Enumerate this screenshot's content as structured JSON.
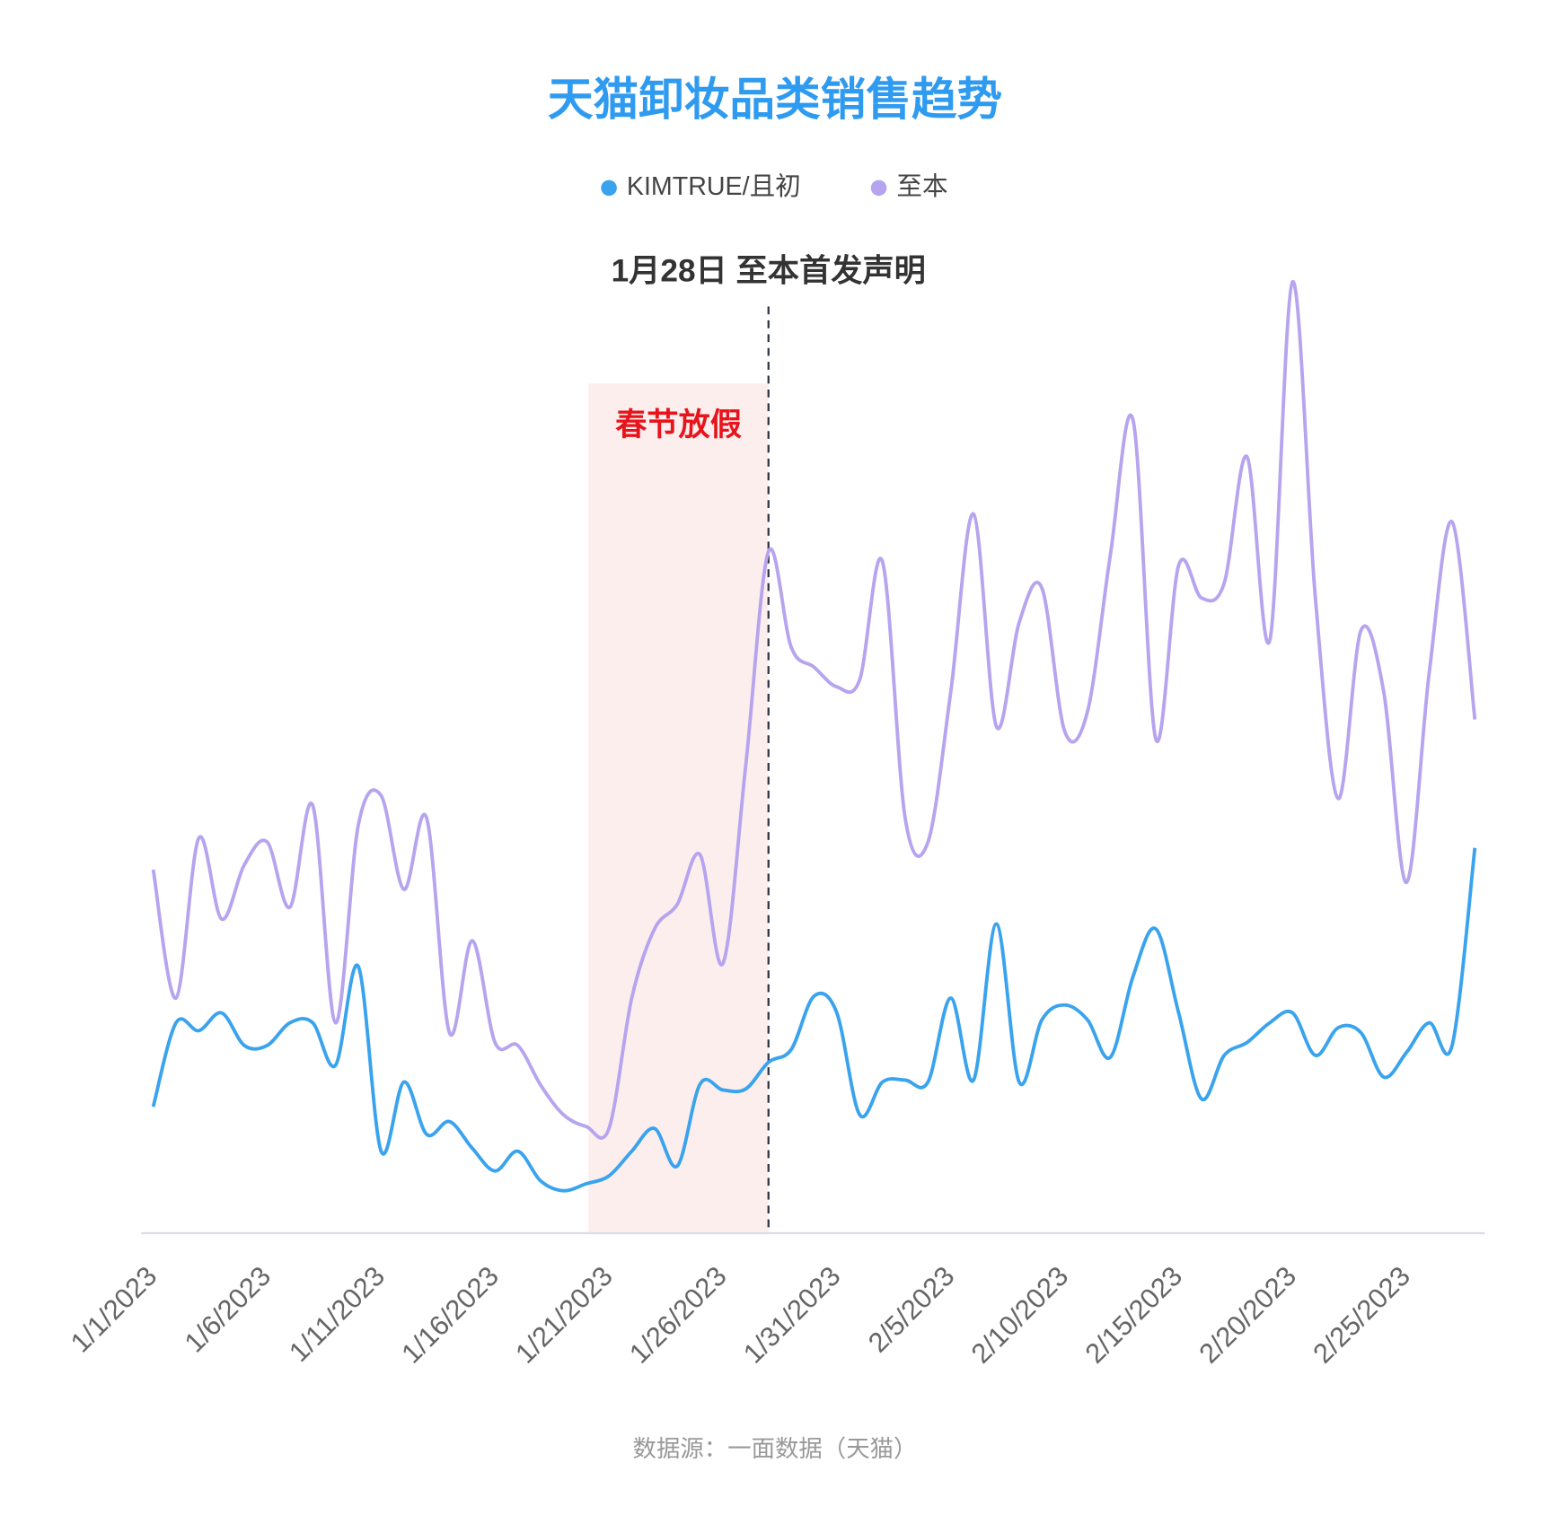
{
  "chart_data": {
    "type": "line",
    "title": "天猫卸妆品类销售趋势",
    "source": "数据源：一面数据（天猫）",
    "categories": [
      "1/1/2023",
      null,
      null,
      null,
      null,
      "1/6/2023",
      null,
      null,
      null,
      null,
      "1/11/2023",
      null,
      null,
      null,
      null,
      "1/16/2023",
      null,
      null,
      null,
      null,
      "1/21/2023",
      null,
      null,
      null,
      null,
      "1/26/2023",
      null,
      null,
      null,
      null,
      "1/31/2023",
      null,
      null,
      null,
      null,
      "2/5/2023",
      null,
      null,
      null,
      null,
      "2/10/2023",
      null,
      null,
      null,
      null,
      "2/15/2023",
      null,
      null,
      null,
      null,
      "2/20/2023",
      null,
      null,
      null,
      null,
      "2/25/2023",
      null,
      null,
      null
    ],
    "series": [
      {
        "name": "KIMTRUE/且初",
        "color": "#3aa3ee",
        "values": [
          12.8,
          21.3,
          20.5,
          22.3,
          19,
          19,
          21.3,
          21.3,
          17,
          27,
          8.3,
          15.3,
          10,
          11.3,
          8.6,
          6.3,
          8.3,
          5.3,
          4.3,
          5,
          5.8,
          8.3,
          10.6,
          6.8,
          15.1,
          14.5,
          14.6,
          17.3,
          18.6,
          24,
          22.3,
          12,
          15.3,
          15.5,
          15.3,
          23.8,
          15.5,
          31.3,
          15.3,
          21.6,
          23.1,
          21.6,
          17.8,
          26,
          30.8,
          22.3,
          13.6,
          18,
          19.3,
          21.3,
          22.3,
          18,
          20.8,
          20.3,
          15.8,
          18.3,
          21.3,
          19,
          39
        ]
      },
      {
        "name": "至本",
        "color": "#b7a4ef",
        "values": [
          36.8,
          23.8,
          40,
          31.8,
          37.3,
          39.6,
          33,
          43.3,
          21.3,
          41.3,
          44.3,
          34.8,
          42,
          20.3,
          29.6,
          19.3,
          19,
          15,
          12,
          10.8,
          10.6,
          23.8,
          30.8,
          33.3,
          38.3,
          27.3,
          47.3,
          69,
          59.3,
          57.3,
          55.3,
          56,
          68,
          42,
          39.6,
          54.8,
          72.8,
          51.3,
          61.8,
          65.3,
          50.8,
          52.8,
          68.6,
          82.3,
          50,
          67.6,
          64.3,
          65.8,
          78.6,
          60,
          96.3,
          64.3,
          44,
          61,
          54.8,
          35.5,
          56.8,
          72,
          52
        ]
      }
    ],
    "ylim": [
      0,
      100
    ],
    "annotations": [
      {
        "text": "1月28日 至本首发声明",
        "x": 27
      },
      {
        "text": "春节放假",
        "x": [
          19.1,
          27
        ]
      }
    ]
  }
}
